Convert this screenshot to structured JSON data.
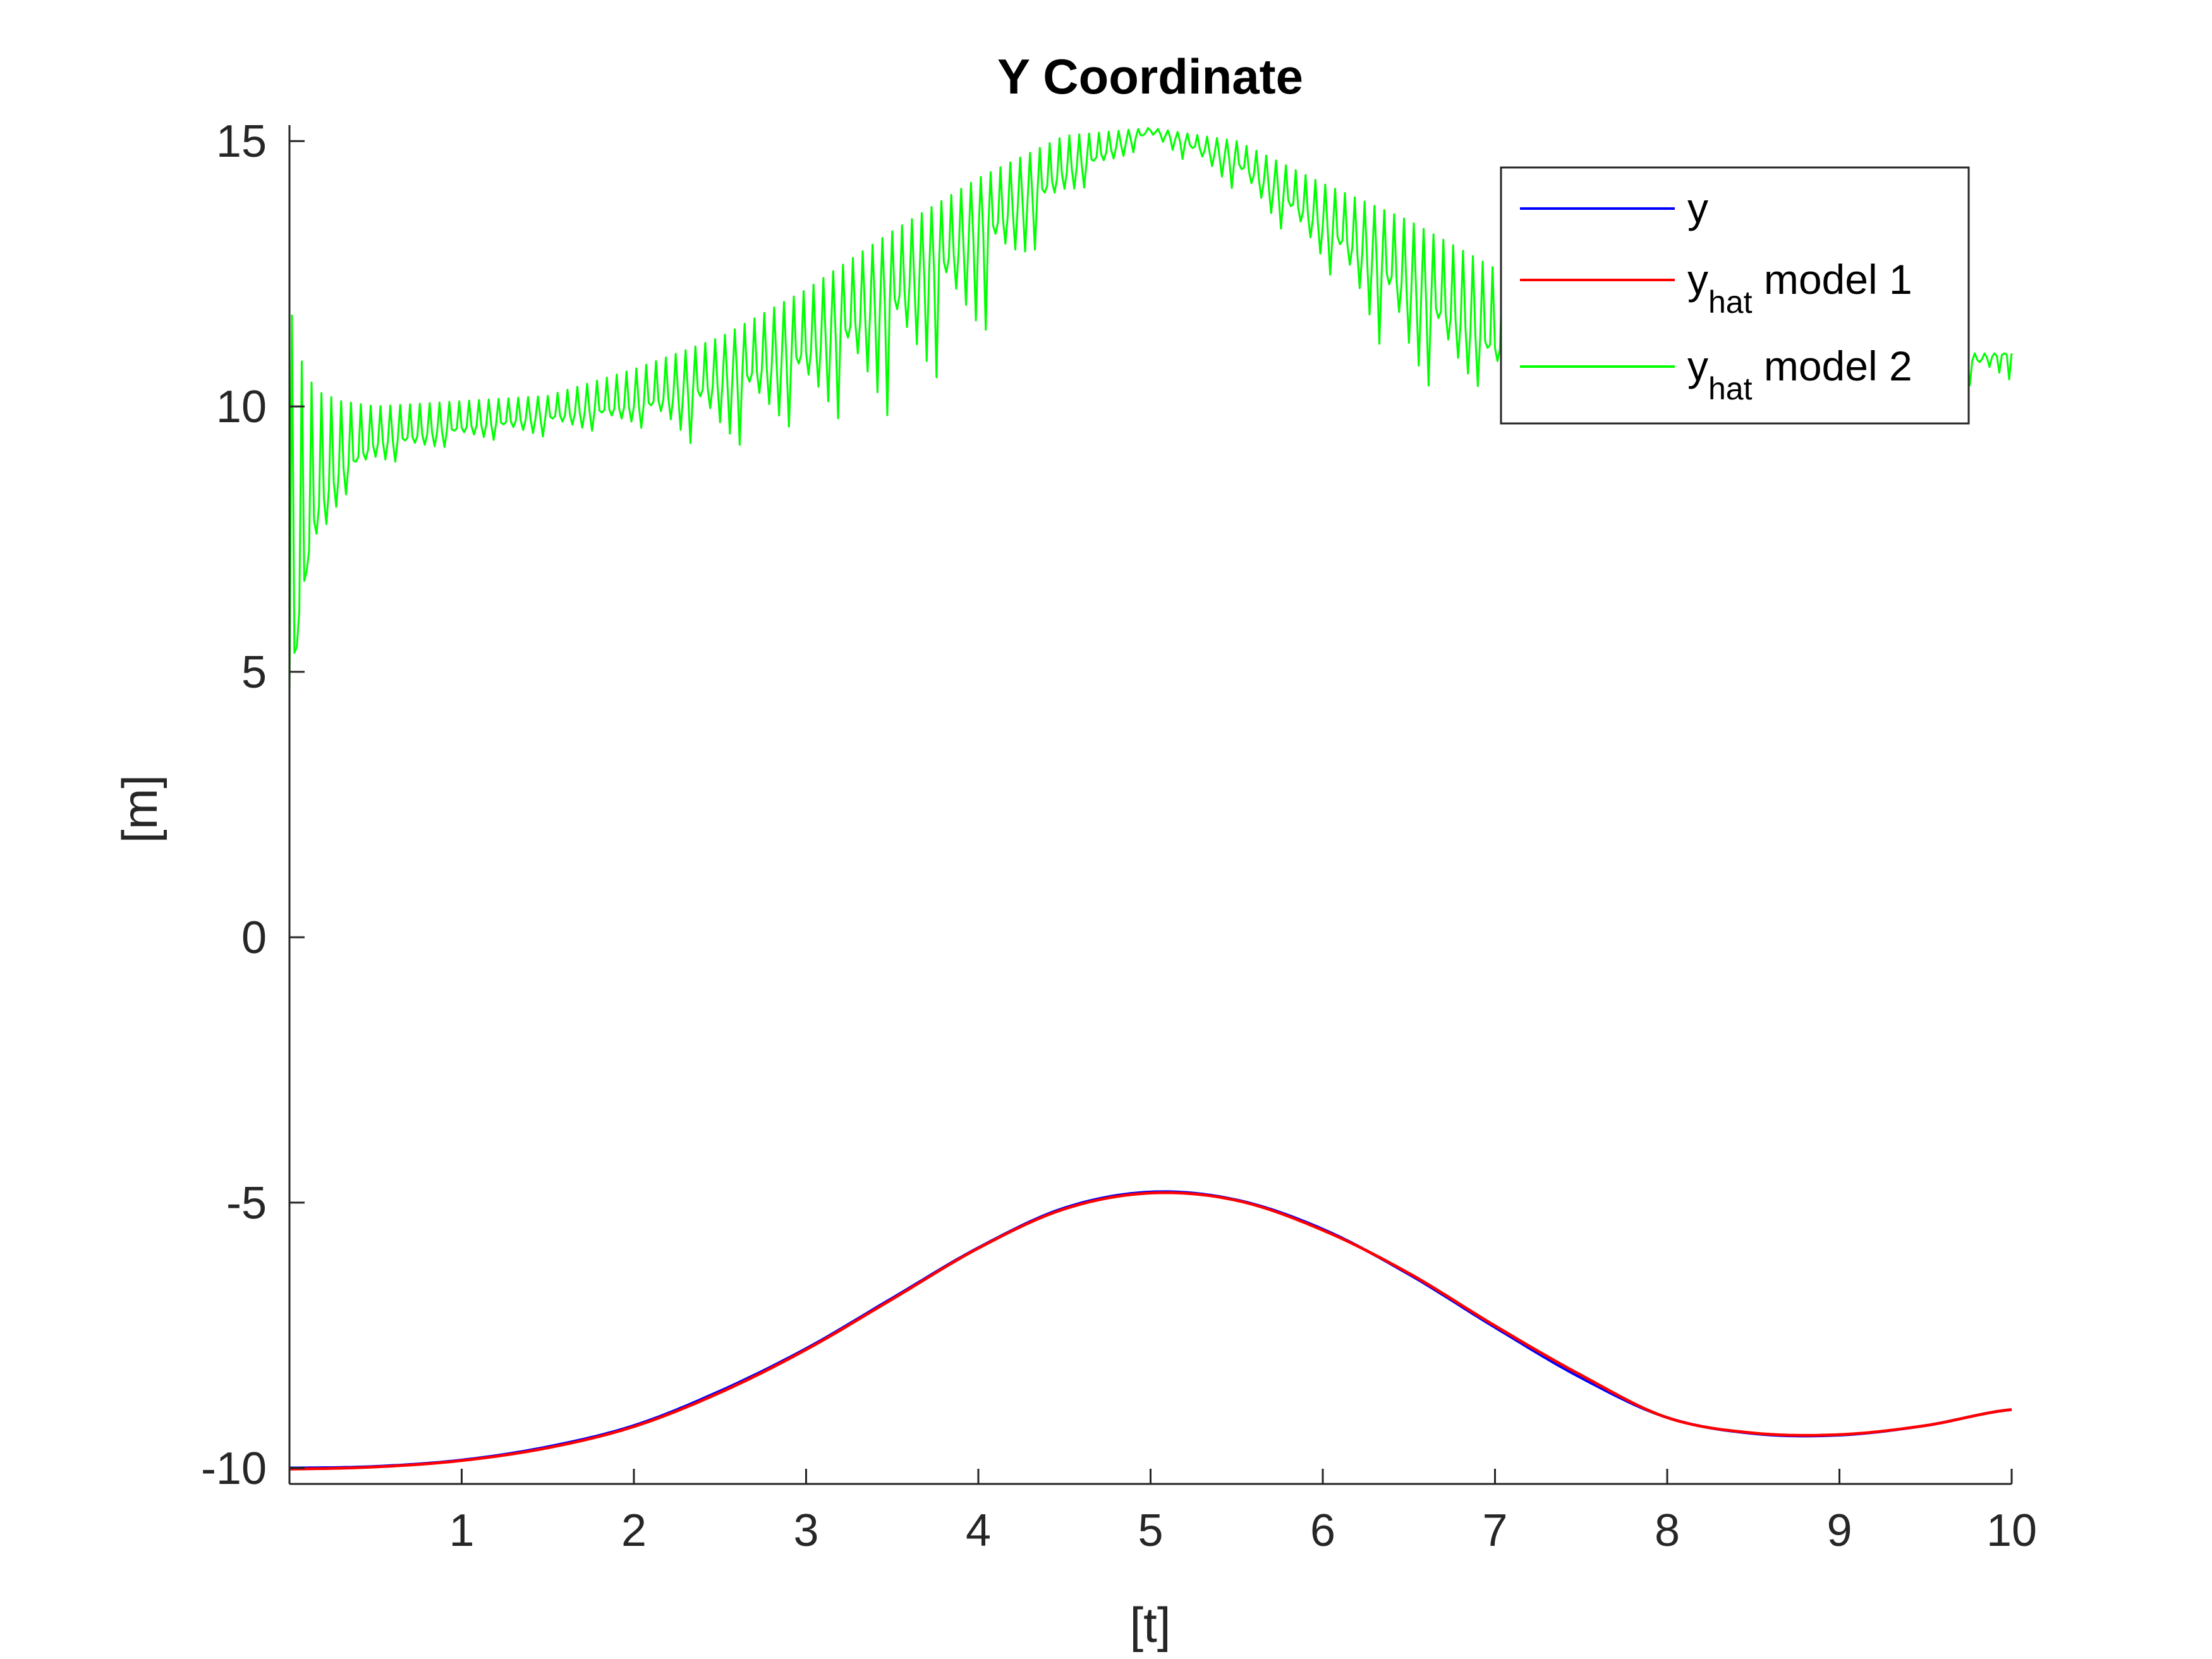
{
  "chart_data": {
    "type": "line",
    "title": "Y Coordinate",
    "xlabel": "[t]",
    "ylabel": "[m]",
    "xlim": [
      0,
      10
    ],
    "ylim": [
      -10.3,
      15.3
    ],
    "xticks": [
      1,
      2,
      3,
      4,
      5,
      6,
      7,
      8,
      9,
      10
    ],
    "xtick_labels": [
      "1",
      "2",
      "3",
      "4",
      "5",
      "6",
      "7",
      "8",
      "9",
      "10"
    ],
    "yticks": [
      -10,
      -5,
      0,
      5,
      10,
      15
    ],
    "ytick_labels": [
      "-10",
      "-5",
      "0",
      "5",
      "10",
      "15"
    ],
    "grid": false,
    "legend_position": "top-right",
    "series": [
      {
        "name": "y",
        "color": "#0000ff",
        "x": [
          0,
          0.5,
          1,
          1.5,
          2,
          2.5,
          3,
          3.5,
          4,
          4.5,
          5,
          5.5,
          6,
          6.5,
          7,
          7.5,
          8,
          8.5,
          9,
          9.5,
          10
        ],
        "y": [
          -10,
          -9.97,
          -9.85,
          -9.6,
          -9.2,
          -8.55,
          -7.75,
          -6.8,
          -5.85,
          -5.1,
          -4.8,
          -4.95,
          -5.5,
          -6.35,
          -7.35,
          -8.3,
          -9.05,
          -9.35,
          -9.38,
          -9.2,
          -8.9
        ]
      },
      {
        "name": "y_hat model 1",
        "name_main": "y",
        "name_sub": "hat",
        "name_rest": " model 1",
        "color": "#ff0000",
        "x": [
          0,
          0.5,
          1,
          1.5,
          2,
          2.5,
          3,
          3.5,
          4,
          4.5,
          5,
          5.5,
          6,
          6.5,
          7,
          7.5,
          8,
          8.5,
          9,
          9.5,
          10
        ],
        "y": [
          -10.02,
          -9.98,
          -9.86,
          -9.62,
          -9.22,
          -8.58,
          -7.77,
          -6.82,
          -5.86,
          -5.12,
          -4.82,
          -4.96,
          -5.52,
          -6.33,
          -7.32,
          -8.25,
          -9.05,
          -9.34,
          -9.37,
          -9.2,
          -8.9
        ]
      },
      {
        "name": "y_hat model 2",
        "name_main": "y",
        "name_sub": "hat",
        "name_rest": " model 2",
        "color": "#00ff00",
        "x": [
          0,
          0.05,
          0.15,
          0.3,
          0.5,
          1,
          1.5,
          2,
          2.5,
          3,
          3.5,
          4,
          4.5,
          5,
          5.5,
          6,
          6.5,
          7,
          7.5,
          8,
          8.5,
          9,
          9.5,
          10
        ],
        "y": [
          4.5,
          6.0,
          8.0,
          8.8,
          9.3,
          9.6,
          9.8,
          10.0,
          10.4,
          11.0,
          12.0,
          13.2,
          14.4,
          15.2,
          14.6,
          13.4,
          12.2,
          11.1,
          10.7,
          10.8,
          10.9,
          10.8,
          10.7,
          11.0
        ],
        "envelope_top": [
          12.0,
          11.0,
          10.3,
          10.1,
          10.0,
          10.1,
          10.2,
          10.7,
          11.3,
          12.2,
          13.3,
          14.3,
          15.1,
          15.25,
          15.0,
          14.2,
          13.5,
          12.6,
          11.6,
          11.2,
          11.2,
          11.1,
          11.0,
          11.0
        ],
        "envelope_bottom": [
          4.5,
          5.6,
          6.5,
          8.2,
          8.8,
          9.3,
          9.4,
          9.6,
          9.0,
          9.6,
          9.6,
          11.0,
          13.8,
          15.0,
          14.0,
          12.6,
          10.2,
          10.3,
          10.5,
          10.6,
          10.6,
          10.5,
          10.4,
          10.3
        ]
      }
    ]
  }
}
